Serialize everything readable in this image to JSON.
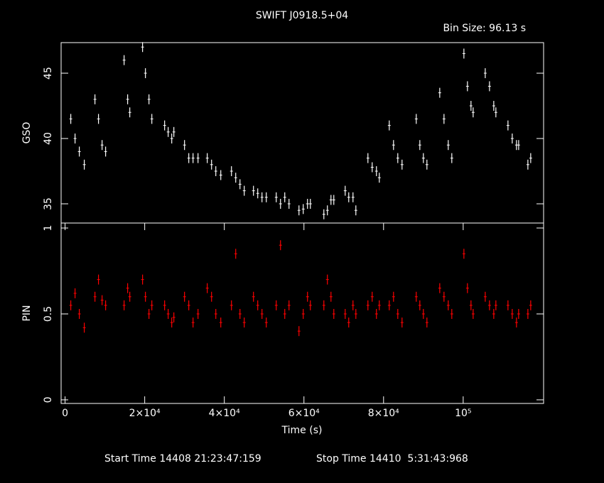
{
  "chart_data": [
    {
      "type": "scatter",
      "title": "SWIFT J0918.5+04",
      "subtitle": "Bin Size: 96.13 s",
      "y_label": "GSO",
      "x": [
        1430,
        2500,
        3570,
        4820,
        7500,
        8390,
        9290,
        10180,
        14820,
        15710,
        16250,
        19460,
        20180,
        21070,
        21790,
        25000,
        25890,
        26790,
        27320,
        30000,
        31070,
        32140,
        33390,
        35710,
        36790,
        37860,
        39110,
        41790,
        42860,
        43930,
        45000,
        47320,
        48390,
        49460,
        50540,
        53040,
        54110,
        55180,
        56250,
        58750,
        59820,
        60890,
        61610,
        65000,
        65890,
        66790,
        67500,
        70360,
        71250,
        72320,
        73040,
        76070,
        77140,
        78210,
        78930,
        81430,
        82500,
        83570,
        84640,
        88210,
        89110,
        90000,
        90890,
        94110,
        95180,
        96250,
        97140,
        100180,
        101070,
        101960,
        102500,
        105540,
        106610,
        107680,
        108210,
        111250,
        112320,
        113390,
        113930,
        116250,
        116960
      ],
      "series": [
        {
          "name": "GSO",
          "color": "#ffffff",
          "values": [
            41.5,
            40,
            39,
            38,
            43,
            41.5,
            39.5,
            39,
            46,
            43,
            42,
            47,
            45,
            43,
            41.5,
            41,
            40.5,
            40,
            40.5,
            39.5,
            38.5,
            38.5,
            38.5,
            38.5,
            38,
            37.5,
            37.2,
            37.5,
            37,
            36.5,
            36,
            36,
            35.8,
            35.5,
            35.5,
            35.5,
            35,
            35.5,
            35,
            34.5,
            34.6,
            35,
            35,
            34.2,
            34.5,
            35.3,
            35.3,
            36,
            35.5,
            35.5,
            34.5,
            38.5,
            37.8,
            37.5,
            37,
            41,
            39.5,
            38.5,
            38,
            41.5,
            39.5,
            38.5,
            38,
            43.5,
            41.5,
            39.5,
            38.5,
            46.5,
            44,
            42.5,
            42,
            45,
            44,
            42.5,
            42,
            41,
            40,
            39.5,
            39.5,
            38,
            38.5
          ]
        }
      ],
      "xlim": [
        -1000,
        120200
      ],
      "ylim": [
        33.53,
        47.34
      ],
      "yticks": [
        35,
        40,
        45
      ]
    },
    {
      "type": "scatter",
      "x_label": "Time (s)",
      "y_label": "PIN",
      "x": [
        1430,
        2500,
        3570,
        4820,
        7500,
        8390,
        9290,
        10180,
        14820,
        15710,
        16250,
        19460,
        20180,
        21070,
        21790,
        25000,
        25890,
        26790,
        27320,
        30000,
        31070,
        32140,
        33390,
        35710,
        36790,
        37860,
        39110,
        41790,
        42860,
        43930,
        45000,
        47320,
        48390,
        49460,
        50540,
        53040,
        54110,
        55180,
        56250,
        58750,
        59820,
        60890,
        61610,
        65000,
        65890,
        66790,
        67500,
        70360,
        71250,
        72320,
        73040,
        76070,
        77140,
        78210,
        78930,
        81430,
        82500,
        83570,
        84640,
        88210,
        89110,
        90000,
        90890,
        94110,
        95180,
        96250,
        97140,
        100180,
        101070,
        101960,
        102500,
        105540,
        106610,
        107680,
        108210,
        111250,
        112320,
        113390,
        113930,
        116250,
        116960
      ],
      "series": [
        {
          "name": "PIN",
          "color": "#ff0000",
          "values": [
            0.55,
            0.62,
            0.5,
            0.42,
            0.6,
            0.7,
            0.58,
            0.55,
            0.55,
            0.65,
            0.6,
            0.7,
            0.6,
            0.5,
            0.55,
            0.55,
            0.5,
            0.45,
            0.48,
            0.6,
            0.55,
            0.45,
            0.5,
            0.65,
            0.6,
            0.5,
            0.45,
            0.55,
            0.85,
            0.5,
            0.45,
            0.6,
            0.55,
            0.5,
            0.45,
            0.55,
            0.9,
            0.5,
            0.55,
            0.4,
            0.5,
            0.6,
            0.55,
            0.55,
            0.7,
            0.6,
            0.5,
            0.5,
            0.45,
            0.55,
            0.5,
            0.55,
            0.6,
            0.5,
            0.55,
            0.55,
            0.6,
            0.5,
            0.45,
            0.6,
            0.55,
            0.5,
            0.45,
            0.65,
            0.6,
            0.55,
            0.5,
            0.85,
            0.65,
            0.55,
            0.5,
            0.6,
            0.55,
            0.5,
            0.55,
            0.55,
            0.5,
            0.45,
            0.5,
            0.5,
            0.55
          ]
        }
      ],
      "xlim": [
        -1000,
        120200
      ],
      "ylim": [
        -0.021,
        1.029
      ],
      "xticks": [
        0,
        {
          "value": 20000,
          "label": "2×10⁴"
        },
        {
          "value": 40000,
          "label": "4×10⁴"
        },
        {
          "value": 60000,
          "label": "6×10⁴"
        },
        {
          "value": 80000,
          "label": "8×10⁴"
        },
        {
          "value": 100000,
          "label": "10⁵"
        }
      ],
      "yticks": [
        0,
        0.5,
        1
      ]
    }
  ],
  "footer": {
    "start": "Start Time 14408 21:23:47:159",
    "stop": "Stop Time 14410  5:31:43:968"
  }
}
